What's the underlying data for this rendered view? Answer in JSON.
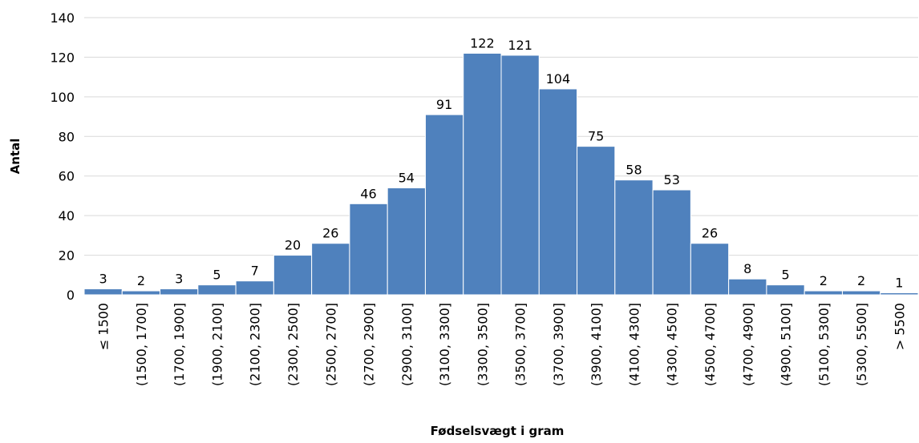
{
  "chart_data": {
    "type": "bar",
    "x_label": "Fødselsvægt i gram",
    "y_label": "Antal",
    "categories": [
      "≤ 1500",
      "(1500, 1700]",
      "(1700, 1900]",
      "(1900, 2100]",
      "(2100, 2300]",
      "(2300, 2500]",
      "(2500, 2700]",
      "(2700, 2900]",
      "(2900, 3100]",
      "(3100, 3300]",
      "(3300, 3500]",
      "(3500, 3700]",
      "(3700, 3900]",
      "(3900, 4100]",
      "(4100, 4300]",
      "(4300, 4500]",
      "(4500, 4700]",
      "(4700, 4900]",
      "(4900, 5100]",
      "(5100, 5300]",
      "(5300, 5500]",
      "> 5500"
    ],
    "values": [
      3,
      2,
      3,
      5,
      7,
      20,
      26,
      46,
      54,
      91,
      122,
      121,
      104,
      75,
      58,
      53,
      26,
      8,
      5,
      2,
      2,
      1
    ],
    "color": "#4f81bd",
    "ylim": [
      0,
      140
    ],
    "yticks": [
      0,
      20,
      40,
      60,
      80,
      100,
      120,
      140
    ],
    "grid": true
  }
}
